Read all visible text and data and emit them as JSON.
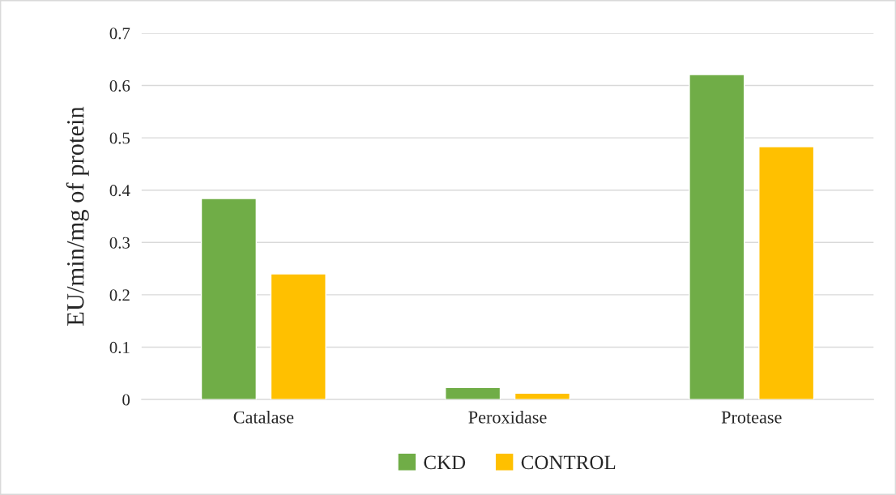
{
  "chart_data": {
    "type": "bar",
    "ylabel": "EU/min/mg of protein",
    "categories": [
      "Catalase",
      "Peroxidase",
      "Protease"
    ],
    "series": [
      {
        "name": "CKD",
        "color": "#70ad47",
        "values": [
          0.384,
          0.023,
          0.621
        ]
      },
      {
        "name": "CONTROL",
        "color": "#ffc000",
        "values": [
          0.24,
          0.012,
          0.483
        ]
      }
    ],
    "ylim": [
      0,
      0.7
    ],
    "yticks": [
      {
        "value": 0,
        "label": "0"
      },
      0.1,
      0.2,
      0.3,
      0.4,
      0.5,
      0.6,
      0.7
    ],
    "grid": "y",
    "legend": "bottom"
  }
}
